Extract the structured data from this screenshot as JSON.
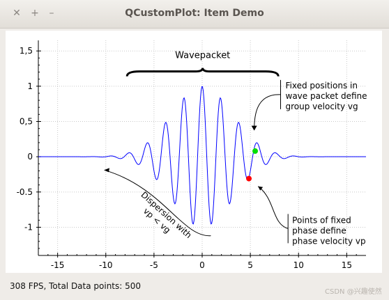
{
  "window": {
    "title": "QCustomPlot: Item Demo",
    "close_glyph": "✕",
    "maximize_glyph": "+",
    "minimize_glyph": "–"
  },
  "status": {
    "text": "308 FPS, Total Data points: 500"
  },
  "watermark": {
    "text": "CSDN @兴趣使然"
  },
  "chart_data": {
    "type": "line",
    "title": "",
    "xlabel": "",
    "ylabel": "",
    "xlim": [
      -17,
      17
    ],
    "ylim": [
      -1.4,
      1.65
    ],
    "grid": true,
    "x_ticks": [
      -15,
      -10,
      -5,
      0,
      5,
      10,
      15
    ],
    "x_tick_labels": [
      "-15",
      "-10",
      "-5",
      "0",
      "5",
      "10",
      "15"
    ],
    "y_ticks": [
      -1,
      -0.5,
      0,
      0.5,
      1,
      1.5
    ],
    "y_tick_labels": [
      "-1",
      "-0.5",
      "0",
      "0,5",
      "1",
      "1,5"
    ],
    "series": [
      {
        "color": "#0000ff",
        "function": "exp(-x^2/20) * cos(3.3*x)",
        "x_range": [
          -17,
          17
        ],
        "points": 500
      }
    ],
    "annotations": {
      "bracket_label": "Wavepacket",
      "group_text": [
        "Fixed positions in",
        "wave packet define",
        "group velocity vg"
      ],
      "phase_text": [
        "Points of fixed",
        "phase define",
        "phase velocity vp"
      ],
      "dispersion_text": [
        "Dispersion with",
        "vp < vg"
      ]
    },
    "markers": [
      {
        "name": "group-point",
        "x": 5.5,
        "y": 0.08,
        "color": "#00dd00"
      },
      {
        "name": "phase-point",
        "x": 4.85,
        "y": -0.31,
        "color": "#ff0000"
      }
    ]
  }
}
